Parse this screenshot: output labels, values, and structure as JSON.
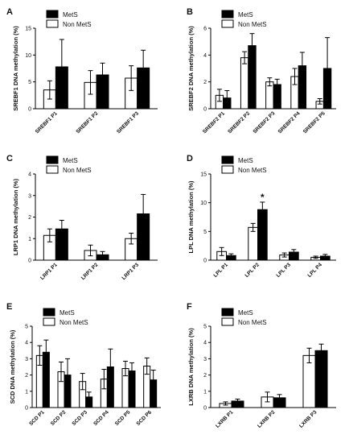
{
  "chart_data": [
    {
      "type": "bar",
      "panel": "A",
      "ylabel": "SREBF1 DNA methylation (%)",
      "ylim": [
        0,
        15
      ],
      "yticks": [
        0,
        5,
        10,
        15
      ],
      "categories": [
        "SREBF1 P1",
        "SREBF1 P2",
        "SREBF1 P3"
      ],
      "series": [
        {
          "name": "Non MetS",
          "color": "#ffffff",
          "values": [
            3.5,
            4.9,
            5.7
          ],
          "errors": [
            1.7,
            2.2,
            2.3
          ]
        },
        {
          "name": "MetS",
          "color": "#000000",
          "values": [
            7.8,
            6.3,
            7.6
          ],
          "errors": [
            5.1,
            2.2,
            3.3
          ]
        }
      ],
      "legend": [
        "MetS",
        "Non MetS"
      ],
      "annotations": []
    },
    {
      "type": "bar",
      "panel": "B",
      "ylabel": "SREBF2 DNA methylation (%)",
      "ylim": [
        0,
        6
      ],
      "yticks": [
        0,
        2,
        4,
        6
      ],
      "categories": [
        "SREBF2 P1",
        "SREBF2 P2",
        "SREBF2 P3",
        "SREBF2 P4",
        "SREBF2 P5"
      ],
      "series": [
        {
          "name": "Non MetS",
          "color": "#ffffff",
          "values": [
            1.0,
            3.8,
            2.0,
            2.4,
            0.55
          ],
          "errors": [
            0.45,
            0.45,
            0.3,
            0.6,
            0.2
          ]
        },
        {
          "name": "MetS",
          "color": "#000000",
          "values": [
            0.8,
            4.7,
            1.8,
            3.2,
            3.0
          ],
          "errors": [
            0.55,
            0.9,
            0.4,
            1.0,
            2.3
          ]
        }
      ],
      "legend": [
        "MetS",
        "Non MetS"
      ],
      "annotations": []
    },
    {
      "type": "bar",
      "panel": "C",
      "ylabel": "LRP1 DNA methylation (%)",
      "ylim": [
        0,
        4
      ],
      "yticks": [
        0,
        1,
        2,
        3,
        4
      ],
      "categories": [
        "LRP1 P1",
        "LRP1 P2",
        "LRP1 P3"
      ],
      "series": [
        {
          "name": "Non MetS",
          "color": "#ffffff",
          "values": [
            1.15,
            0.45,
            1.0
          ],
          "errors": [
            0.3,
            0.25,
            0.25
          ]
        },
        {
          "name": "MetS",
          "color": "#000000",
          "values": [
            1.45,
            0.25,
            2.15
          ],
          "errors": [
            0.4,
            0.15,
            0.9
          ]
        }
      ],
      "legend": [
        "MetS",
        "Non MetS"
      ],
      "annotations": []
    },
    {
      "type": "bar",
      "panel": "D",
      "ylabel": "LPL DNA methylation (%)",
      "ylim": [
        0,
        15
      ],
      "yticks": [
        0,
        5,
        10,
        15
      ],
      "categories": [
        "LPL P1",
        "LPL P2",
        "LPL P3",
        "LPL P4"
      ],
      "series": [
        {
          "name": "Non MetS",
          "color": "#ffffff",
          "values": [
            1.5,
            5.7,
            0.9,
            0.5
          ],
          "errors": [
            0.7,
            0.7,
            0.35,
            0.2
          ]
        },
        {
          "name": "MetS",
          "color": "#000000",
          "values": [
            0.8,
            8.8,
            1.4,
            0.7
          ],
          "errors": [
            0.3,
            1.3,
            0.45,
            0.3
          ]
        }
      ],
      "legend": [
        "MetS",
        "Non MetS"
      ],
      "annotations": [
        {
          "text": "*",
          "category": "LPL P2",
          "series": "MetS"
        }
      ]
    },
    {
      "type": "bar",
      "panel": "E",
      "ylabel": "SCD DNA methylation (%)",
      "ylim": [
        0,
        5
      ],
      "yticks": [
        0,
        1,
        2,
        3,
        4,
        5
      ],
      "categories": [
        "SCD P1",
        "SCD P2",
        "SCD P3",
        "SCD P4",
        "SCD P5",
        "SCD P6"
      ],
      "series": [
        {
          "name": "Non MetS",
          "color": "#ffffff",
          "values": [
            3.2,
            2.2,
            1.6,
            1.75,
            2.4,
            2.55
          ],
          "errors": [
            0.6,
            0.6,
            0.5,
            0.6,
            0.45,
            0.5
          ]
        },
        {
          "name": "MetS",
          "color": "#000000",
          "values": [
            3.4,
            2.0,
            0.65,
            2.5,
            2.25,
            1.7
          ],
          "errors": [
            0.75,
            1.0,
            0.3,
            1.1,
            0.5,
            0.6
          ]
        }
      ],
      "legend": [
        "MetS",
        "Non MetS"
      ],
      "annotations": []
    },
    {
      "type": "bar",
      "panel": "F",
      "ylabel": "LXRB DNA methylation (%)",
      "ylim": [
        0,
        5
      ],
      "yticks": [
        0,
        1,
        2,
        3,
        4,
        5
      ],
      "categories": [
        "LXRB P1",
        "LXRB P2",
        "LXRB P3"
      ],
      "series": [
        {
          "name": "Non MetS",
          "color": "#ffffff",
          "values": [
            0.25,
            0.65,
            3.2
          ],
          "errors": [
            0.1,
            0.3,
            0.45
          ]
        },
        {
          "name": "MetS",
          "color": "#000000",
          "values": [
            0.4,
            0.6,
            3.5
          ],
          "errors": [
            0.12,
            0.2,
            0.4
          ]
        }
      ],
      "legend": [
        "MetS",
        "Non MetS"
      ],
      "annotations": []
    }
  ]
}
